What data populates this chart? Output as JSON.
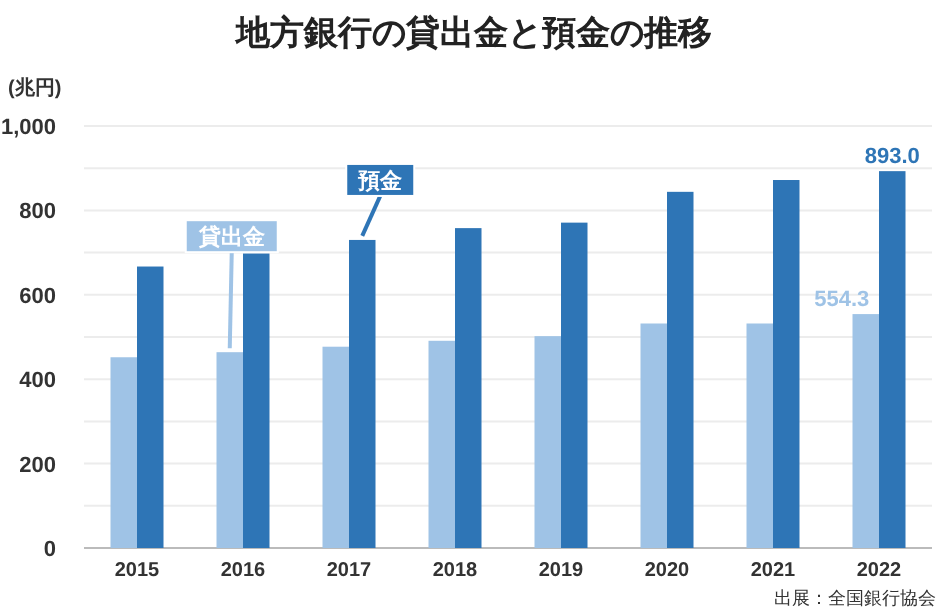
{
  "chart_data": {
    "type": "bar",
    "title": "地方銀行の貸出金と預金の推移",
    "ylabel": "(兆円)",
    "categories": [
      "2015",
      "2016",
      "2017",
      "2018",
      "2019",
      "2020",
      "2021",
      "2022"
    ],
    "series": [
      {
        "name": "貸出金",
        "color": "#9fc3e6",
        "values": [
          452,
          464,
          477,
          491,
          502,
          532,
          532,
          554.3
        ],
        "value_labels": [
          null,
          null,
          null,
          null,
          null,
          null,
          null,
          "554.3"
        ]
      },
      {
        "name": "預金",
        "color": "#2e75b6",
        "values": [
          667,
          698,
          730,
          758,
          771,
          844,
          872,
          893.0
        ],
        "value_labels": [
          null,
          null,
          null,
          null,
          null,
          null,
          null,
          "893.0"
        ]
      }
    ],
    "ylim": [
      0,
      1000
    ],
    "yticks": [
      0,
      {
        "value": 100,
        "label": null
      },
      200,
      {
        "value": 300,
        "label": null
      },
      400,
      {
        "value": 500,
        "label": null
      },
      600,
      {
        "value": 700,
        "label": null
      },
      800,
      {
        "value": 900,
        "label": null
      },
      {
        "value": 1000,
        "label": "1,000"
      }
    ],
    "grid": "y",
    "legend": false,
    "annotations": [
      "出展：全国銀行協会"
    ]
  }
}
